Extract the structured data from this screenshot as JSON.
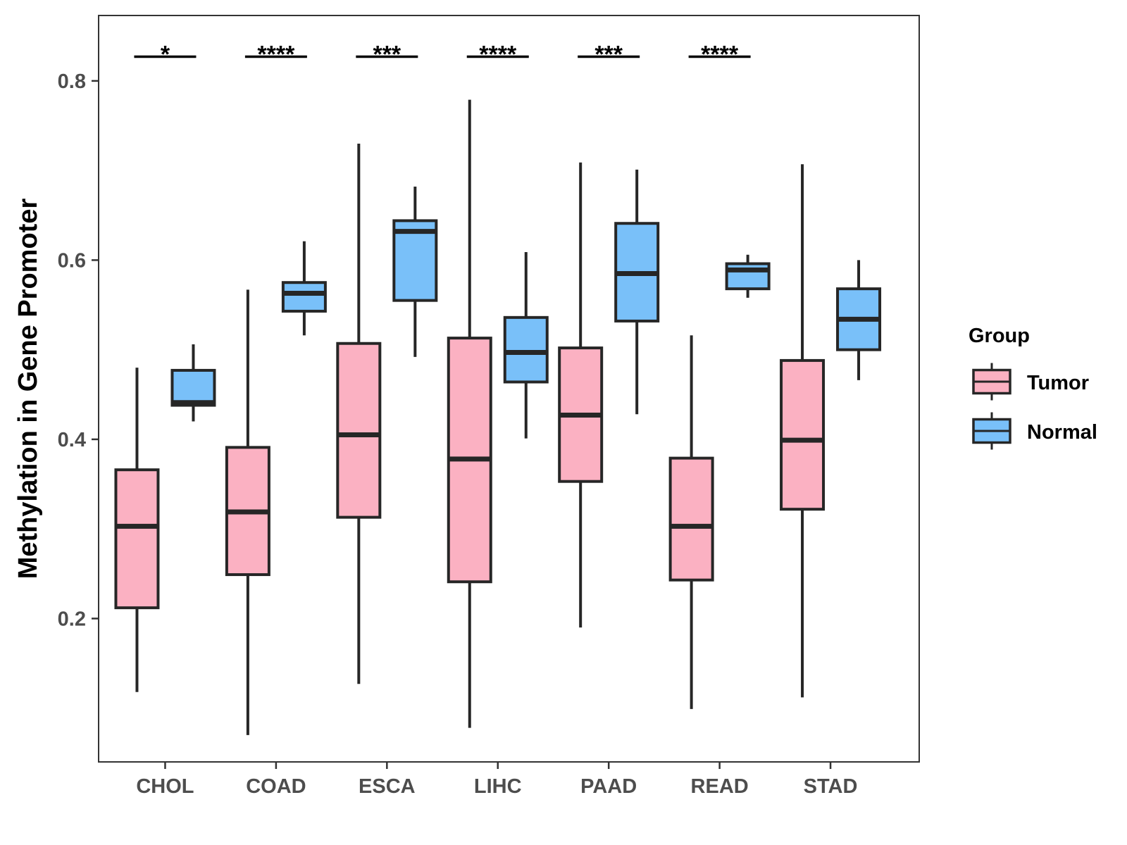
{
  "chart_data": {
    "type": "box",
    "title": "",
    "xlabel": "",
    "ylabel": "Methylation in Gene Promoter",
    "ylim": [
      0.04,
      0.873
    ],
    "yticks": [
      0.2,
      0.4,
      0.6,
      0.8
    ],
    "ytick_labels": [
      "0.2",
      "0.4",
      "0.6",
      "0.8"
    ],
    "categories": [
      "CHOL",
      "COAD",
      "ESCA",
      "LIHC",
      "PAAD",
      "READ",
      "STAD"
    ],
    "legend": {
      "title": "Group",
      "position": "right",
      "entries": [
        {
          "name": "Tumor",
          "color": "#FBB1C2"
        },
        {
          "name": "Normal",
          "color": "#79C0F9"
        }
      ]
    },
    "series": [
      {
        "name": "Tumor",
        "color": "#FBB1C2",
        "boxes": [
          {
            "min": 0.118,
            "q1": 0.212,
            "median": 0.303,
            "q3": 0.366,
            "max": 0.48
          },
          {
            "min": 0.07,
            "q1": 0.249,
            "median": 0.319,
            "q3": 0.391,
            "max": 0.567
          },
          {
            "min": 0.127,
            "q1": 0.313,
            "median": 0.405,
            "q3": 0.507,
            "max": 0.73
          },
          {
            "min": 0.078,
            "q1": 0.241,
            "median": 0.378,
            "q3": 0.513,
            "max": 0.779
          },
          {
            "min": 0.19,
            "q1": 0.353,
            "median": 0.427,
            "q3": 0.502,
            "max": 0.709
          },
          {
            "min": 0.099,
            "q1": 0.243,
            "median": 0.303,
            "q3": 0.379,
            "max": 0.516
          },
          {
            "min": 0.112,
            "q1": 0.322,
            "median": 0.399,
            "q3": 0.488,
            "max": 0.707
          }
        ]
      },
      {
        "name": "Normal",
        "color": "#79C0F9",
        "boxes": [
          {
            "min": 0.42,
            "q1": 0.438,
            "median": 0.441,
            "q3": 0.477,
            "max": 0.506
          },
          {
            "min": 0.516,
            "q1": 0.543,
            "median": 0.563,
            "q3": 0.575,
            "max": 0.621
          },
          {
            "min": 0.492,
            "q1": 0.555,
            "median": 0.632,
            "q3": 0.644,
            "max": 0.682
          },
          {
            "min": 0.401,
            "q1": 0.464,
            "median": 0.497,
            "q3": 0.536,
            "max": 0.609
          },
          {
            "min": 0.428,
            "q1": 0.532,
            "median": 0.585,
            "q3": 0.641,
            "max": 0.701
          },
          {
            "min": 0.558,
            "q1": 0.568,
            "median": 0.589,
            "q3": 0.596,
            "max": 0.606
          },
          {
            "min": 0.466,
            "q1": 0.5,
            "median": 0.534,
            "q3": 0.568,
            "max": 0.6
          }
        ]
      }
    ],
    "significance": [
      {
        "category": "CHOL",
        "label": "*",
        "y": 0.827
      },
      {
        "category": "COAD",
        "label": "****",
        "y": 0.827
      },
      {
        "category": "ESCA",
        "label": "***",
        "y": 0.827
      },
      {
        "category": "LIHC",
        "label": "****",
        "y": 0.827
      },
      {
        "category": "PAAD",
        "label": "***",
        "y": 0.827
      },
      {
        "category": "READ",
        "label": "****",
        "y": 0.827
      }
    ]
  }
}
